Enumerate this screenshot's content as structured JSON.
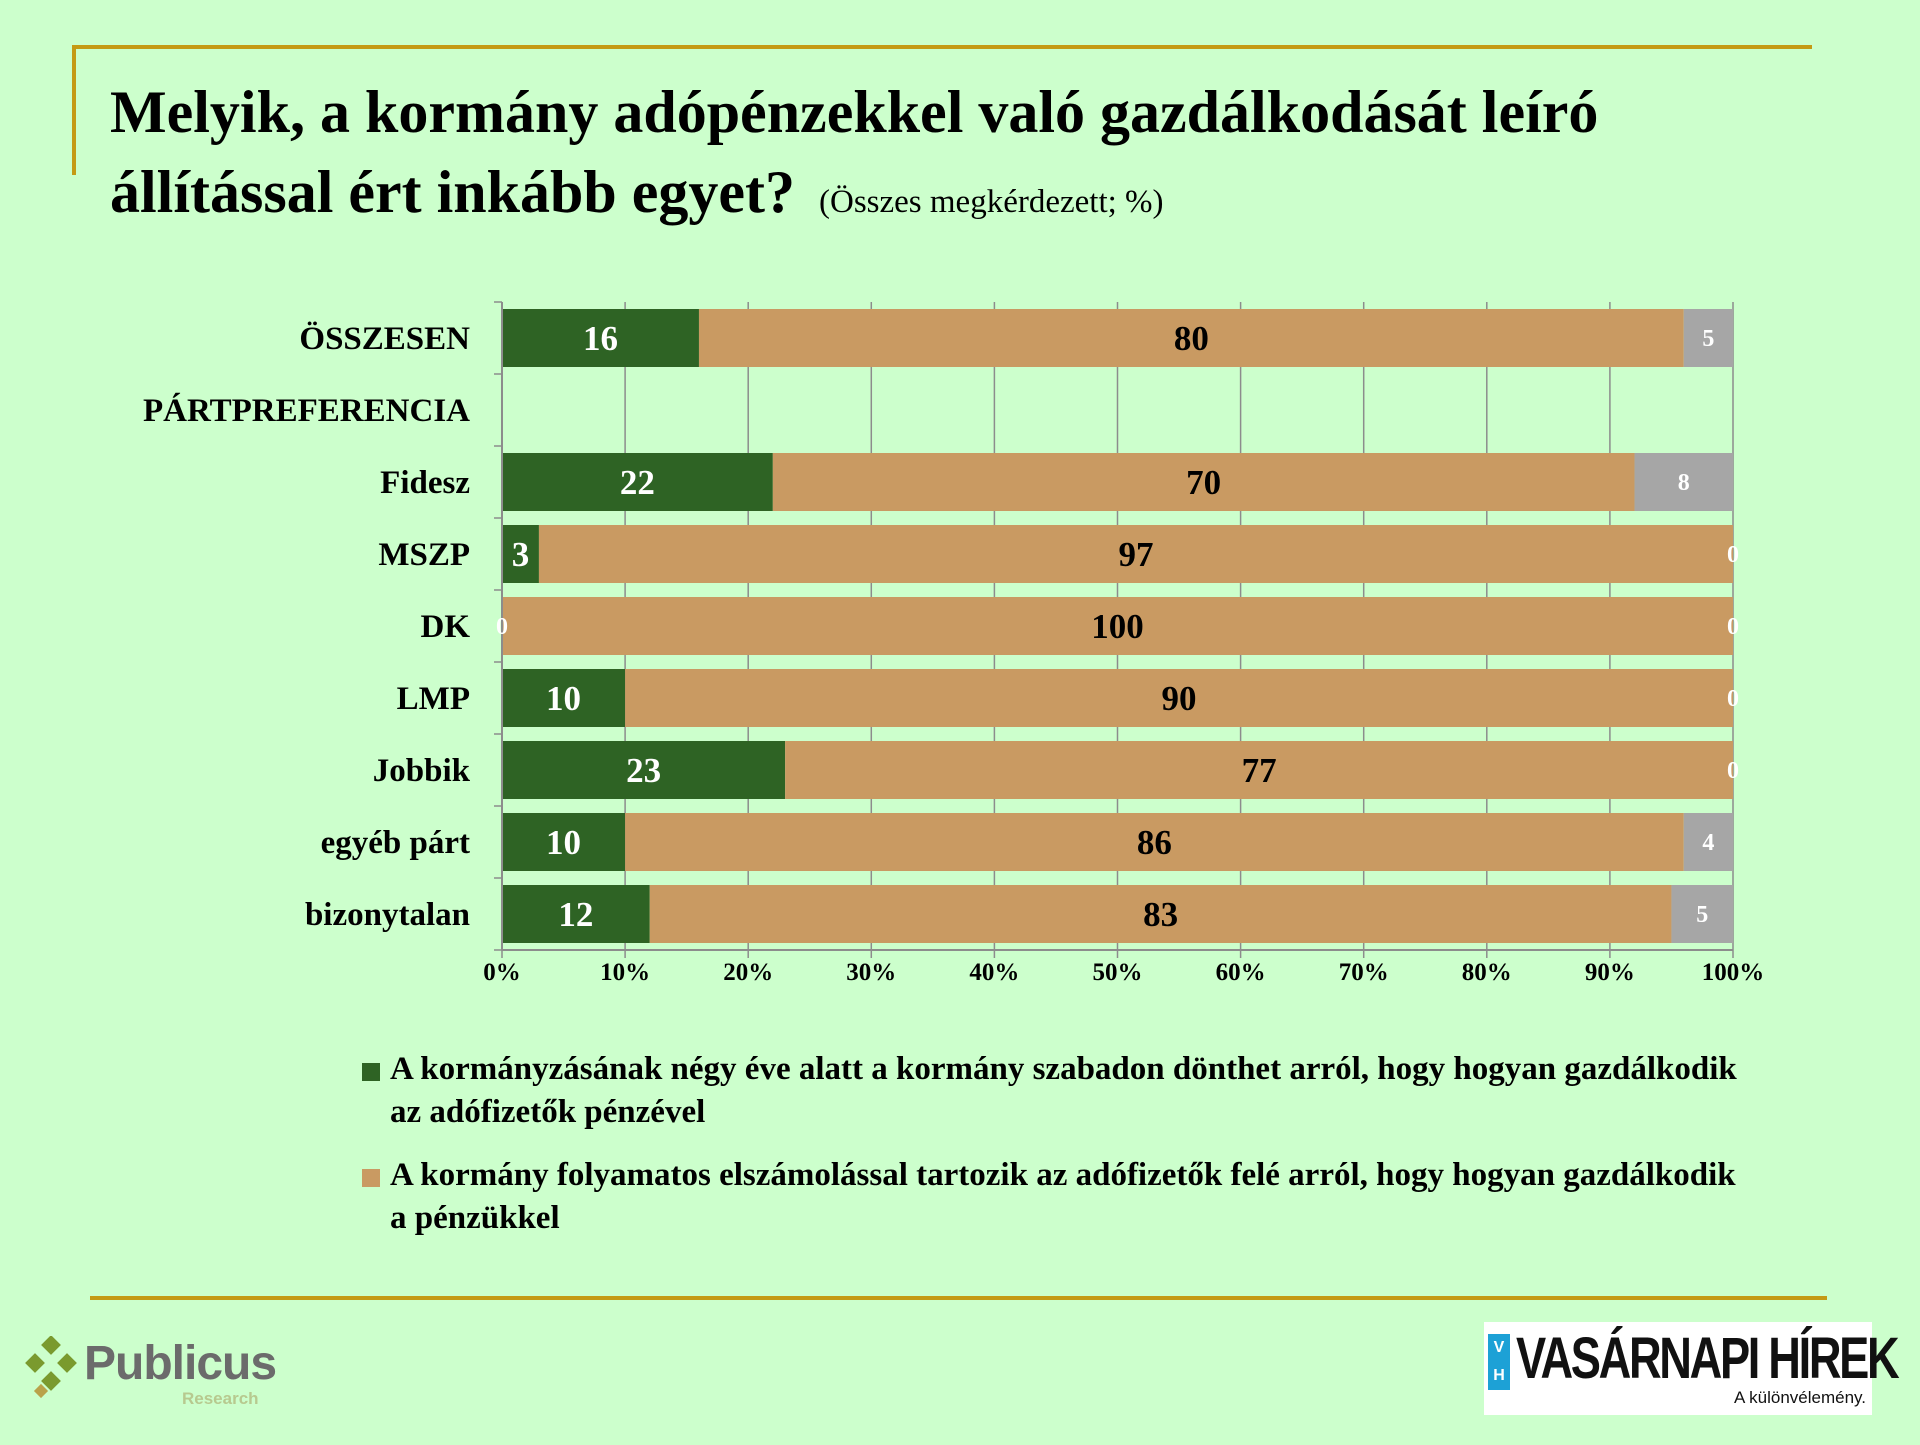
{
  "header": {
    "title": "Melyik, a kormány adópénzekkel való gazdálkodását leíró állítással ért inkább egyet?",
    "subtitle": "(Összes megkérdezett; %)"
  },
  "chart_data": {
    "type": "bar",
    "orientation": "horizontal",
    "stacked": true,
    "percent_stacked": true,
    "categories": [
      "ÖSSZESEN",
      "PÁRTPREFERENCIA",
      "Fidesz",
      "MSZP",
      "DK",
      "LMP",
      "Jobbik",
      "egyéb párt",
      "bizonytalan"
    ],
    "series": [
      {
        "name": "A kormányzásának négy éve alatt a kormány szabadon dönthet arról, hogy hogyan gazdálkodik az adófizetők pénzével",
        "color": "#2e6324",
        "label_color": "#ffffff",
        "values": [
          16,
          null,
          22,
          3,
          0,
          10,
          23,
          10,
          12
        ]
      },
      {
        "name": "A kormány folyamatos elszámolással tartozik az adófizetők felé arról, hogy hogyan gazdálkodik a pénzükkel",
        "color": "#c99a62",
        "label_color": "#000000",
        "values": [
          80,
          null,
          70,
          97,
          100,
          90,
          77,
          86,
          83
        ]
      },
      {
        "color": "#a6a6a6",
        "label_color": "#ffffff",
        "values": [
          5,
          null,
          8,
          0,
          0,
          0,
          0,
          4,
          5
        ]
      }
    ],
    "x_ticks": [
      "0%",
      "10%",
      "20%",
      "30%",
      "40%",
      "50%",
      "60%",
      "70%",
      "80%",
      "90%",
      "100%"
    ],
    "xlim": [
      0,
      100
    ],
    "grid": true,
    "legend_position": "bottom"
  },
  "logos": {
    "publicus": {
      "name": "Publicus",
      "sub": "Research"
    },
    "vh": {
      "mark": "V H",
      "name": "VASÁRNAPI HÍREK",
      "tagline": "A különvélemény."
    }
  }
}
